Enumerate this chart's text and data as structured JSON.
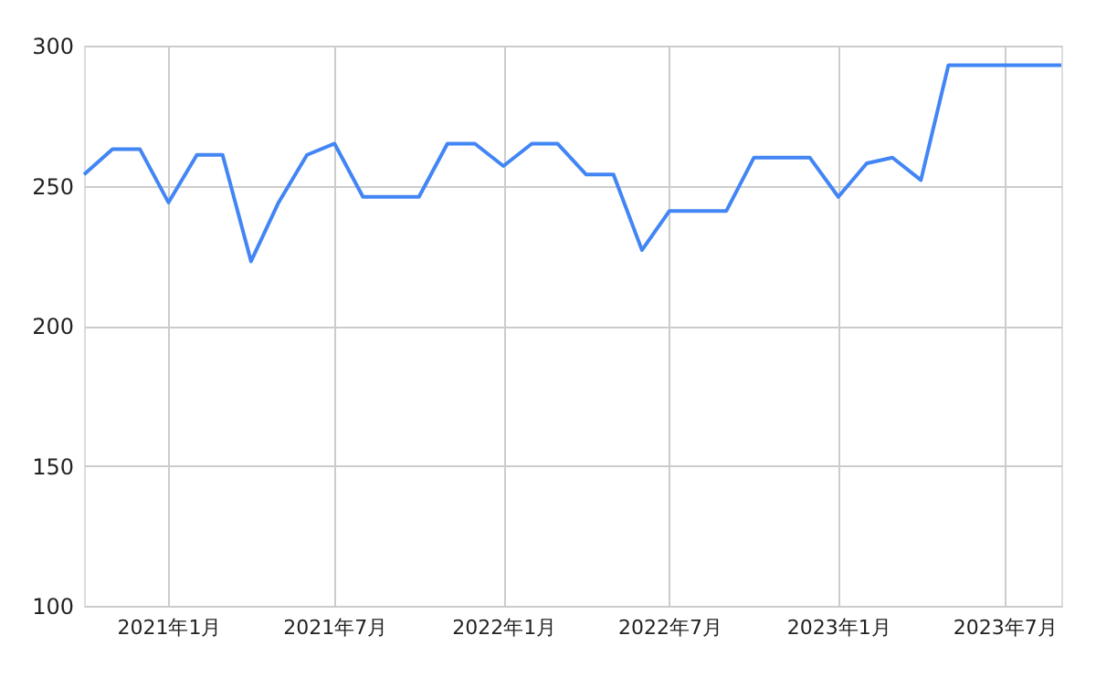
{
  "chart_data": {
    "type": "line",
    "x": [
      "2020-10",
      "2020-11",
      "2020-12",
      "2021-01",
      "2021-02",
      "2021-03",
      "2021-04",
      "2021-05",
      "2021-06",
      "2021-07",
      "2021-08",
      "2021-09",
      "2021-10",
      "2021-11",
      "2021-12",
      "2022-01",
      "2022-02",
      "2022-03",
      "2022-04",
      "2022-05",
      "2022-06",
      "2022-07",
      "2022-08",
      "2022-09",
      "2022-10",
      "2022-11",
      "2022-12",
      "2023-01",
      "2023-02",
      "2023-03",
      "2023-04",
      "2023-05",
      "2023-06",
      "2023-07",
      "2023-08",
      "2023-09"
    ],
    "series": [
      {
        "color": "#4285f4",
        "values": [
          254,
          263,
          263,
          244,
          261,
          261,
          223,
          244,
          261,
          265,
          246,
          246,
          246,
          265,
          265,
          257,
          265,
          265,
          254,
          254,
          227,
          241,
          241,
          241,
          260,
          260,
          260,
          246,
          258,
          260,
          252,
          293,
          293,
          293,
          293,
          293
        ]
      }
    ],
    "xlim": [
      "2020-10",
      "2023-09"
    ],
    "xticks": [
      {
        "value": "2021-01",
        "label": "2021年1月"
      },
      {
        "value": "2021-07",
        "label": "2021年7月"
      },
      {
        "value": "2022-01",
        "label": "2022年1月"
      },
      {
        "value": "2022-07",
        "label": "2022年7月"
      },
      {
        "value": "2023-01",
        "label": "2023年1月"
      },
      {
        "value": "2023-07",
        "label": "2023年7月"
      }
    ],
    "ylim": [
      100,
      300
    ],
    "yticks": [
      100,
      150,
      200,
      250,
      300
    ],
    "grid": true,
    "marker": "none",
    "line_style": "solid"
  }
}
